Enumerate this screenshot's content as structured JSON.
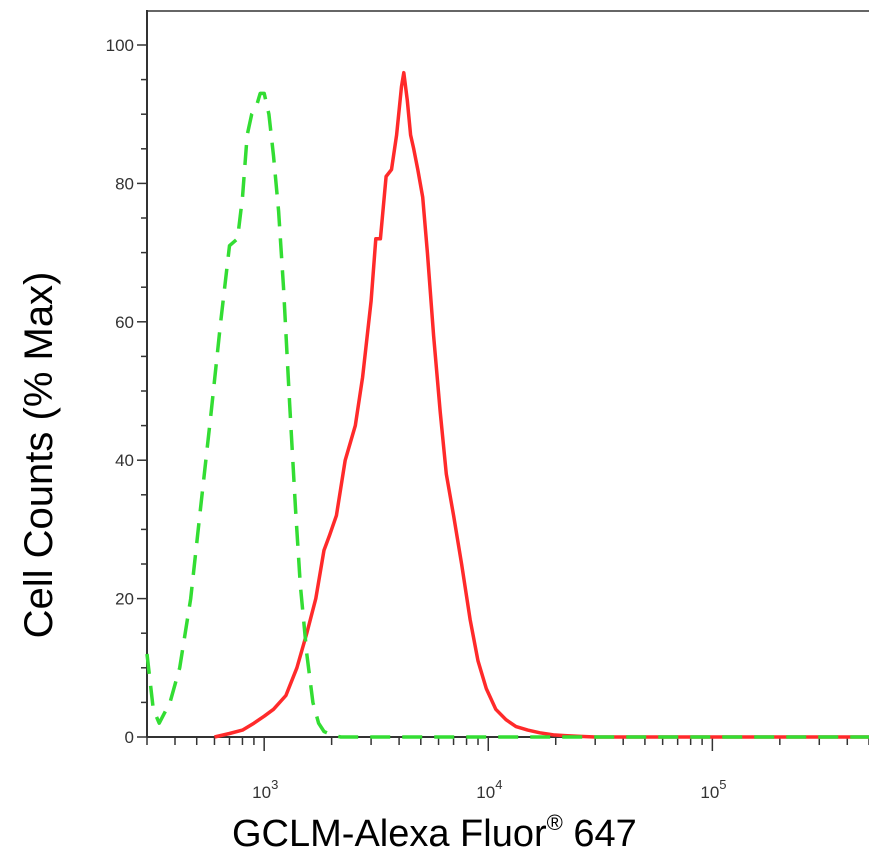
{
  "chart_data": {
    "type": "line",
    "title": "",
    "xlabel": "GCLM-Alexa Fluor",
    "xlabel_mark": "®",
    "xlabel_suffix": " 647",
    "ylabel": "Cell Counts (% Max)",
    "x_scale": "log",
    "xlim": [
      300,
      500000
    ],
    "ylim": [
      0,
      100
    ],
    "y_ticks": [
      0,
      20,
      40,
      60,
      80,
      100
    ],
    "x_tick_base": "10",
    "x_ticks": [
      {
        "value": 1000,
        "exp": "3"
      },
      {
        "value": 10000,
        "exp": "4"
      },
      {
        "value": 100000,
        "exp": "5"
      }
    ],
    "grid": false,
    "legend": "none",
    "series": [
      {
        "color": "#ff2a2a",
        "style": "solid",
        "x": [
          600,
          700,
          800,
          900,
          1000,
          1100,
          1250,
          1400,
          1550,
          1700,
          1850,
          1950,
          2100,
          2300,
          2550,
          2750,
          3000,
          3150,
          3300,
          3500,
          3700,
          3900,
          4100,
          4200,
          4350,
          4500,
          4650,
          4850,
          5100,
          5350,
          5700,
          6100,
          6500,
          7000,
          7600,
          8300,
          9000,
          9800,
          10800,
          12000,
          13300,
          15000,
          17000,
          19500,
          22000,
          25000,
          30000,
          40000,
          100000,
          500000
        ],
        "y": [
          0,
          0.5,
          1,
          2,
          3,
          4,
          6,
          10,
          15,
          20,
          27,
          29,
          32,
          40,
          45,
          52,
          63,
          72,
          72,
          81,
          82,
          87,
          94,
          96,
          92,
          87,
          85,
          82,
          78,
          70,
          58,
          47,
          38,
          32,
          25,
          17,
          11,
          7,
          4,
          2.5,
          1.5,
          1,
          0.6,
          0.3,
          0.2,
          0.1,
          0,
          0,
          0,
          0
        ]
      },
      {
        "color": "#33dd33",
        "style": "dashed",
        "x": [
          300,
          320,
          340,
          380,
          420,
          470,
          520,
          580,
          640,
          700,
          760,
          800,
          840,
          880,
          920,
          960,
          1000,
          1050,
          1100,
          1160,
          1220,
          1300,
          1380,
          1450,
          1550,
          1650,
          1750,
          1850,
          2000,
          2200,
          2600,
          3500,
          6000,
          20000,
          100000,
          500000
        ],
        "y": [
          12,
          4,
          2,
          5,
          10,
          20,
          33,
          47,
          60,
          71,
          72,
          78,
          87,
          90,
          91,
          93,
          93,
          90,
          84,
          76,
          65,
          48,
          33,
          22,
          12,
          5,
          2,
          0.8,
          0.3,
          0,
          0,
          0,
          0,
          0,
          0,
          0
        ]
      }
    ]
  }
}
